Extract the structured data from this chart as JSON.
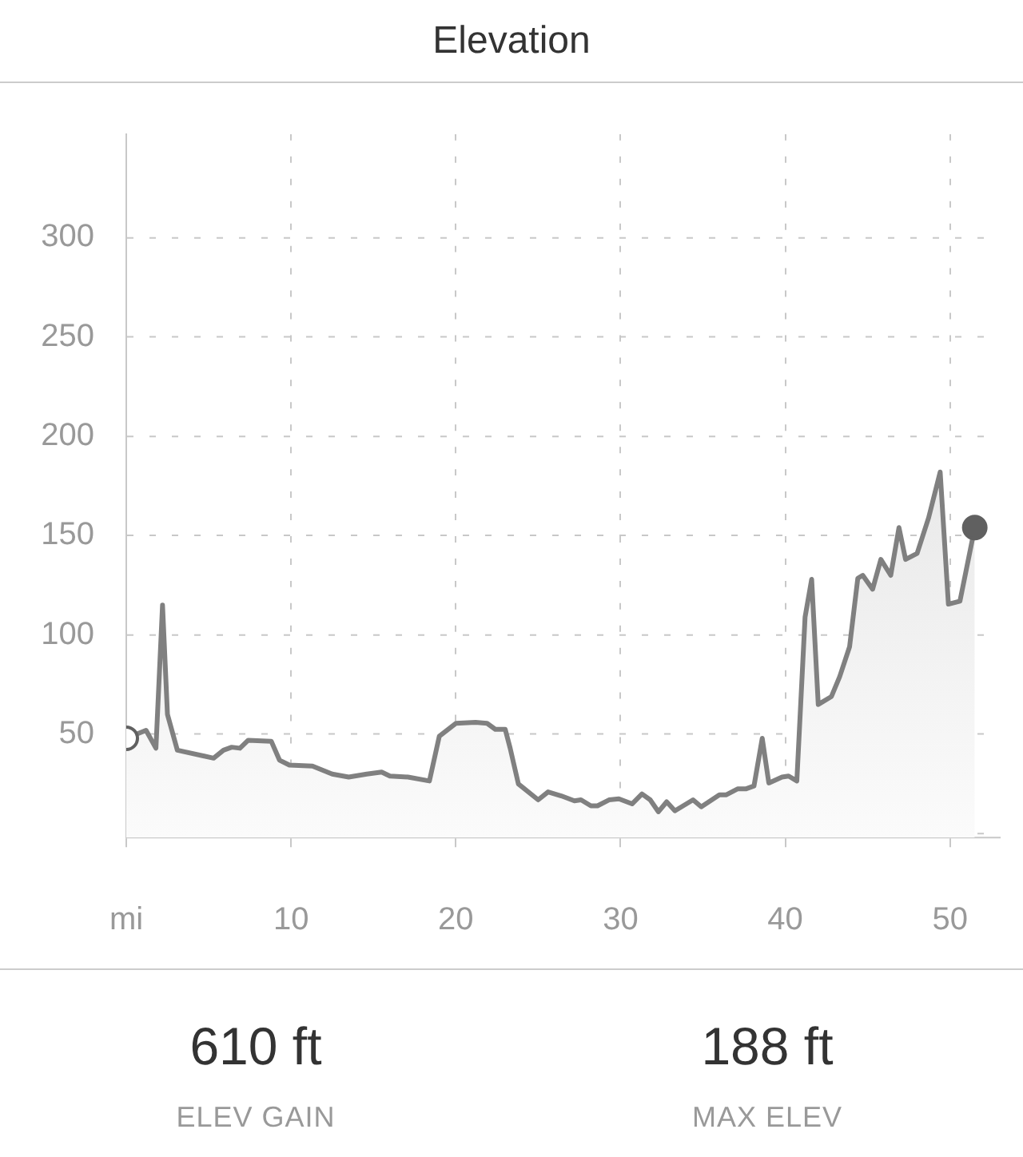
{
  "chart_data": {
    "type": "area",
    "title": "Elevation",
    "x": [
      0,
      1.2,
      1.8,
      2.2,
      2.5,
      3.1,
      5.3,
      5.9,
      6.4,
      6.9,
      7.4,
      8.8,
      9.3,
      9.9,
      11.3,
      12.5,
      13.5,
      14.6,
      15.5,
      16,
      17.1,
      18.4,
      19,
      20,
      21.2,
      21.9,
      22.4,
      23,
      23.3,
      23.8,
      25,
      25.6,
      26.4,
      27.2,
      27.6,
      28.2,
      28.6,
      29.3,
      29.9,
      30.7,
      31.3,
      31.8,
      32.3,
      32.8,
      33.3,
      34.4,
      34.9,
      36,
      36.4,
      37.1,
      37.6,
      38.1,
      38.6,
      39,
      39.8,
      40.2,
      40.7,
      41.2,
      41.6,
      42,
      42.8,
      43.3,
      43.9,
      44.4,
      44.7,
      45.3,
      45.8,
      46.4,
      46.9,
      47.3,
      48,
      48.7,
      49.4,
      49.9,
      50.6,
      51.5
    ],
    "series": [
      {
        "color": "#808080",
        "values": [
          48,
          52,
          43,
          115,
          60,
          42,
          38,
          42,
          43.5,
          43,
          47,
          46.5,
          37,
          34.5,
          34,
          30,
          28.5,
          30,
          31,
          29,
          28.5,
          26.5,
          49,
          55.5,
          56,
          55.5,
          52.5,
          52.5,
          43,
          25,
          17,
          21,
          19,
          16.5,
          17,
          14,
          14,
          17,
          17.5,
          15,
          20,
          17,
          11,
          16,
          11.5,
          17,
          13.5,
          19.5,
          19.5,
          22.5,
          22.5,
          24,
          48,
          25.5,
          28.5,
          29,
          26.5,
          109,
          128,
          65,
          69,
          79,
          94,
          128.5,
          130,
          123,
          138,
          130,
          154,
          138,
          141,
          159,
          182,
          115.5,
          117,
          154
        ]
      }
    ],
    "xlim": [
      0,
      53
    ],
    "xticks": [
      {
        "value": 0,
        "label": "mi"
      },
      10,
      20,
      30,
      40,
      50
    ],
    "ylim": [
      -2,
      352
    ],
    "yticks": [
      {
        "value": 0,
        "label": null
      },
      50,
      100,
      150,
      200,
      250,
      300
    ],
    "grid": true,
    "legend": false,
    "annotations": [
      "610 ft",
      "ELEV GAIN",
      "188 ft",
      "MAX ELEV"
    ]
  }
}
